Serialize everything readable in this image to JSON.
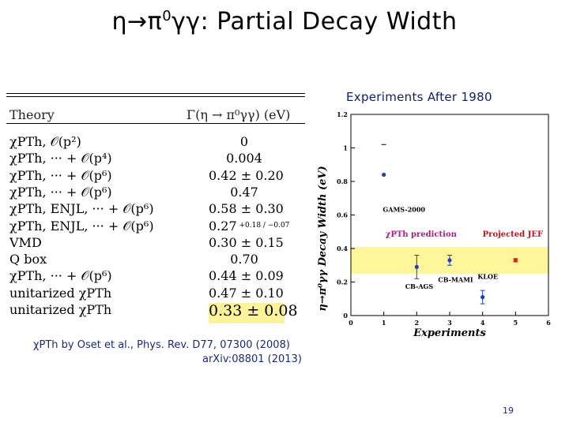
{
  "title": {
    "prefix": "η→π",
    "sup": "0",
    "suffix": "γγ:  Partial Decay Width"
  },
  "table": {
    "header_theory": "Theory",
    "header_value": "Γ(η → π⁰γγ) (eV)",
    "rows": [
      {
        "theory": "χPTh, 𝒪(p²)",
        "value": "0"
      },
      {
        "theory": "χPTh, ··· + 𝒪(p⁴)",
        "value": "0.004"
      },
      {
        "theory": "χPTh, ··· + 𝒪(p⁶)",
        "value": "0.42 ± 0.20"
      },
      {
        "theory": "χPTh, ··· + 𝒪(p⁶)",
        "value": "0.47"
      },
      {
        "theory": "χPTh, ENJL, ··· + 𝒪(p⁶)",
        "value": "0.58 ± 0.30"
      },
      {
        "theory": "χPTh, ENJL, ··· + 𝒪(p⁶)",
        "value": "0.27",
        "sup": "0.18",
        "sub": "0.07"
      },
      {
        "theory": "VMD",
        "value": "0.30 ± 0.15"
      },
      {
        "theory": "Q box",
        "value": "0.70"
      },
      {
        "theory": "χPTh, ··· + 𝒪(p⁶)",
        "value": "0.44 ± 0.09"
      },
      {
        "theory": "unitarized χPTh",
        "value": "0.47 ± 0.10"
      },
      {
        "theory": "unitarized χPTh",
        "value": "0.33 ± 0.08"
      }
    ]
  },
  "experiments_caption": "Experiments After 1980",
  "chart_data": {
    "type": "scatter",
    "xlabel": "Experiments",
    "ylabel": "η→π⁰γγ Decay Width (eV)",
    "xlim": [
      0,
      6
    ],
    "ylim": [
      0,
      1.2
    ],
    "x_ticks": [
      "0",
      "1",
      "2",
      "3",
      "4",
      "5",
      "6"
    ],
    "y_ticks": [
      "0",
      "0.2",
      "0.4",
      "0.6",
      "0.8",
      "1",
      "1.2"
    ],
    "band": {
      "label": "χPTh prediction",
      "y_low": 0.25,
      "y_high": 0.41,
      "color": "#fff59a"
    },
    "series": [
      {
        "name": "GAMS-2000",
        "x": [
          1
        ],
        "y": [
          0.84
        ],
        "err_up": [
          0
        ],
        "err_down": [
          0
        ],
        "color": "#1f3fbf"
      },
      {
        "name": "CB-AGS",
        "x": [
          2
        ],
        "y": [
          0.29
        ],
        "err_up": [
          0.07
        ],
        "err_down": [
          0.07
        ],
        "color": "#1f3fbf"
      },
      {
        "name": "CB-MAMI",
        "x": [
          3
        ],
        "y": [
          0.33
        ],
        "err_up": [
          0.03
        ],
        "err_down": [
          0.03
        ],
        "color": "#1f3fbf"
      },
      {
        "name": "KLOE",
        "x": [
          4
        ],
        "y": [
          0.11
        ],
        "err_up": [
          0.04
        ],
        "err_down": [
          0.04
        ],
        "color": "#1f3fbf"
      },
      {
        "name": "Projected JEF",
        "x": [
          5
        ],
        "y": [
          0.33
        ],
        "err_up": [
          0.01
        ],
        "err_down": [
          0.01
        ],
        "color": "#d8201e"
      }
    ],
    "colors": {
      "band_label": "#b0198e",
      "jef_label": "#c8101e",
      "point": "#1f3fbf"
    }
  },
  "credit": {
    "line1": "χPTh by Oset et al., Phys. Rev. D77, 07300  (2008)",
    "line2": "arXiv:08801 (2013)"
  },
  "page_number": "19"
}
